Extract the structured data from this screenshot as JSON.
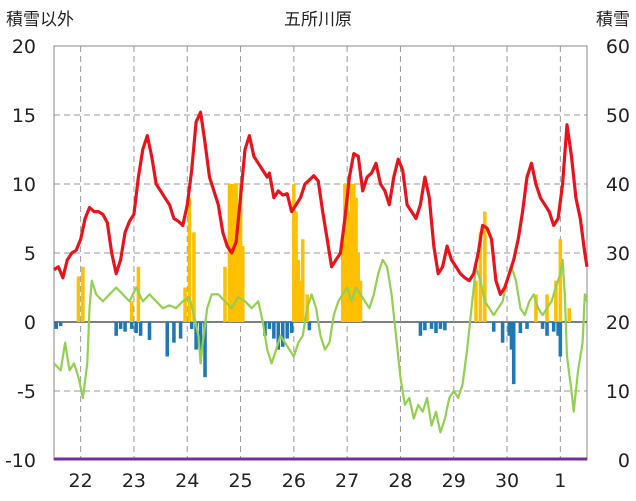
{
  "chart_data": {
    "type": "line",
    "title": "五所川原",
    "y_left_label": "積雪以外",
    "y_right_label": "積雪",
    "y_left_range": [
      -10,
      20
    ],
    "y_right_range": [
      0,
      60
    ],
    "y_left_ticks": [
      "20",
      "15",
      "10",
      "5",
      "0",
      "-5",
      "-10"
    ],
    "y_right_ticks": [
      "60",
      "50",
      "40",
      "30",
      "20",
      "10",
      "0"
    ],
    "day_labels": [
      "22",
      "23",
      "24",
      "25",
      "26",
      "27",
      "28",
      "29",
      "30",
      "1"
    ],
    "x_range_hours": [
      0,
      240
    ],
    "grid": true,
    "colors": {
      "temperature": "#e8141c",
      "dewpoint": "#92d050",
      "snow_plus": "#ffc000",
      "snow_minus": "#1f77b4",
      "snow_depth": "#7030a0"
    },
    "series": {
      "temperature": [
        [
          0,
          3.8
        ],
        [
          2,
          4.0
        ],
        [
          4,
          3.2
        ],
        [
          6,
          4.5
        ],
        [
          8,
          5.0
        ],
        [
          10,
          5.2
        ],
        [
          12,
          6.0
        ],
        [
          14,
          7.5
        ],
        [
          16,
          8.3
        ],
        [
          18,
          8.0
        ],
        [
          20,
          8.0
        ],
        [
          22,
          7.8
        ],
        [
          24,
          7.2
        ],
        [
          26,
          5.0
        ],
        [
          28,
          3.5
        ],
        [
          30,
          4.5
        ],
        [
          32,
          6.5
        ],
        [
          34,
          7.3
        ],
        [
          36,
          7.8
        ],
        [
          38,
          10.5
        ],
        [
          40,
          12.5
        ],
        [
          42,
          13.5
        ],
        [
          44,
          12.0
        ],
        [
          46,
          10.0
        ],
        [
          48,
          9.5
        ],
        [
          50,
          9.0
        ],
        [
          52,
          8.5
        ],
        [
          54,
          7.5
        ],
        [
          56,
          7.3
        ],
        [
          58,
          7.0
        ],
        [
          60,
          8.5
        ],
        [
          62,
          11.0
        ],
        [
          64,
          14.5
        ],
        [
          66,
          15.2
        ],
        [
          68,
          13.0
        ],
        [
          70,
          10.5
        ],
        [
          72,
          9.5
        ],
        [
          74,
          8.5
        ],
        [
          76,
          6.5
        ],
        [
          78,
          5.5
        ],
        [
          80,
          5.0
        ],
        [
          82,
          5.8
        ],
        [
          84,
          9.0
        ],
        [
          86,
          12.5
        ],
        [
          88,
          13.5
        ],
        [
          90,
          12.0
        ],
        [
          92,
          11.5
        ],
        [
          94,
          11.0
        ],
        [
          96,
          10.5
        ],
        [
          97,
          10.8
        ],
        [
          99,
          9.0
        ],
        [
          101,
          9.5
        ],
        [
          103,
          9.2
        ],
        [
          105,
          9.3
        ],
        [
          107,
          8.0
        ],
        [
          109,
          8.5
        ],
        [
          111,
          9.0
        ],
        [
          113,
          10.0
        ],
        [
          115,
          10.3
        ],
        [
          117,
          10.6
        ],
        [
          119,
          10.2
        ],
        [
          121,
          8.0
        ],
        [
          123,
          6.0
        ],
        [
          125,
          4.0
        ],
        [
          127,
          4.5
        ],
        [
          129,
          5.0
        ],
        [
          131,
          7.5
        ],
        [
          133,
          10.5
        ],
        [
          135,
          12.2
        ],
        [
          137,
          12.0
        ],
        [
          139,
          9.5
        ],
        [
          141,
          10.5
        ],
        [
          143,
          10.8
        ],
        [
          145,
          11.5
        ],
        [
          147,
          10.0
        ],
        [
          149,
          9.5
        ],
        [
          151,
          8.5
        ],
        [
          153,
          10.5
        ],
        [
          155,
          11.8
        ],
        [
          157,
          11.0
        ],
        [
          159,
          8.5
        ],
        [
          161,
          8.0
        ],
        [
          163,
          7.5
        ],
        [
          165,
          8.5
        ],
        [
          167,
          10.5
        ],
        [
          169,
          9.0
        ],
        [
          171,
          5.5
        ],
        [
          173,
          3.5
        ],
        [
          175,
          4.0
        ],
        [
          177,
          5.5
        ],
        [
          179,
          4.5
        ],
        [
          181,
          4.0
        ],
        [
          183,
          3.5
        ],
        [
          185,
          3.2
        ],
        [
          187,
          3.0
        ],
        [
          189,
          3.5
        ],
        [
          191,
          5.0
        ],
        [
          193,
          7.0
        ],
        [
          195,
          6.8
        ],
        [
          197,
          6.0
        ],
        [
          199,
          3.0
        ],
        [
          201,
          2.0
        ],
        [
          203,
          2.5
        ],
        [
          205,
          3.5
        ],
        [
          207,
          4.5
        ],
        [
          209,
          6.0
        ],
        [
          211,
          8.0
        ],
        [
          213,
          10.5
        ],
        [
          215,
          11.5
        ],
        [
          217,
          10.0
        ],
        [
          219,
          9.0
        ],
        [
          221,
          8.5
        ],
        [
          223,
          8.0
        ],
        [
          225,
          7.0
        ],
        [
          227,
          7.5
        ],
        [
          229,
          10.0
        ],
        [
          231,
          14.3
        ],
        [
          233,
          12.0
        ],
        [
          235,
          9.0
        ],
        [
          237,
          7.5
        ],
        [
          239,
          5.0
        ],
        [
          240,
          4.0
        ]
      ],
      "dewpoint": [
        [
          0,
          -3.0
        ],
        [
          3,
          -3.5
        ],
        [
          5,
          -1.5
        ],
        [
          7,
          -3.5
        ],
        [
          9,
          -3.0
        ],
        [
          11,
          -4.0
        ],
        [
          13,
          -5.5
        ],
        [
          15,
          -3.0
        ],
        [
          16,
          1.0
        ],
        [
          17,
          3.0
        ],
        [
          19,
          2.0
        ],
        [
          22,
          1.5
        ],
        [
          25,
          2.0
        ],
        [
          28,
          2.5
        ],
        [
          31,
          2.0
        ],
        [
          34,
          1.5
        ],
        [
          37,
          2.5
        ],
        [
          40,
          1.5
        ],
        [
          43,
          2.0
        ],
        [
          46,
          1.5
        ],
        [
          49,
          1.0
        ],
        [
          52,
          1.2
        ],
        [
          55,
          1.0
        ],
        [
          58,
          1.5
        ],
        [
          61,
          1.8
        ],
        [
          63,
          0.5
        ],
        [
          65,
          -1.0
        ],
        [
          66,
          -3.0
        ],
        [
          67,
          -1.5
        ],
        [
          69,
          1.0
        ],
        [
          71,
          2.0
        ],
        [
          74,
          2.0
        ],
        [
          77,
          1.5
        ],
        [
          80,
          1.0
        ],
        [
          83,
          1.8
        ],
        [
          86,
          1.5
        ],
        [
          89,
          1.0
        ],
        [
          92,
          1.5
        ],
        [
          94,
          0.0
        ],
        [
          96,
          -2.0
        ],
        [
          98,
          -3.0
        ],
        [
          100,
          -2.0
        ],
        [
          102,
          -1.0
        ],
        [
          104,
          -1.5
        ],
        [
          106,
          -2.0
        ],
        [
          108,
          -2.5
        ],
        [
          110,
          -1.5
        ],
        [
          112,
          -1.0
        ],
        [
          114,
          1.0
        ],
        [
          116,
          2.0
        ],
        [
          118,
          1.0
        ],
        [
          120,
          -1.0
        ],
        [
          122,
          -2.0
        ],
        [
          124,
          -1.5
        ],
        [
          126,
          0.5
        ],
        [
          128,
          1.5
        ],
        [
          130,
          2.0
        ],
        [
          132,
          2.5
        ],
        [
          134,
          1.5
        ],
        [
          136,
          2.5
        ],
        [
          138,
          2.0
        ],
        [
          140,
          1.5
        ],
        [
          142,
          1.0
        ],
        [
          144,
          2.0
        ],
        [
          146,
          3.5
        ],
        [
          148,
          4.5
        ],
        [
          150,
          4.0
        ],
        [
          152,
          2.0
        ],
        [
          154,
          -1.0
        ],
        [
          156,
          -4.0
        ],
        [
          158,
          -6.0
        ],
        [
          160,
          -5.5
        ],
        [
          162,
          -7.0
        ],
        [
          164,
          -6.0
        ],
        [
          166,
          -6.5
        ],
        [
          168,
          -5.5
        ],
        [
          170,
          -7.5
        ],
        [
          172,
          -6.5
        ],
        [
          174,
          -8.0
        ],
        [
          176,
          -7.0
        ],
        [
          178,
          -5.5
        ],
        [
          180,
          -5.0
        ],
        [
          182,
          -5.5
        ],
        [
          184,
          -4.5
        ],
        [
          186,
          -2.0
        ],
        [
          188,
          1.0
        ],
        [
          190,
          4.0
        ],
        [
          192,
          3.0
        ],
        [
          194,
          1.5
        ],
        [
          196,
          1.0
        ],
        [
          198,
          0.5
        ],
        [
          200,
          1.0
        ],
        [
          202,
          1.5
        ],
        [
          204,
          3.0
        ],
        [
          206,
          4.0
        ],
        [
          208,
          3.0
        ],
        [
          210,
          1.0
        ],
        [
          212,
          0.5
        ],
        [
          214,
          1.5
        ],
        [
          216,
          2.0
        ],
        [
          218,
          1.0
        ],
        [
          220,
          0.5
        ],
        [
          222,
          1.0
        ],
        [
          224,
          1.5
        ],
        [
          226,
          2.5
        ],
        [
          228,
          3.5
        ],
        [
          229,
          4.5
        ],
        [
          230,
          2.0
        ],
        [
          231,
          -2.5
        ],
        [
          233,
          -5.0
        ],
        [
          234,
          -6.5
        ],
        [
          236,
          -3.5
        ],
        [
          238,
          -1.5
        ],
        [
          239,
          2.0
        ],
        [
          240,
          1.5
        ]
      ],
      "snow_plus": [
        [
          11,
          3.3
        ],
        [
          13,
          4.0
        ],
        [
          35,
          1.5
        ],
        [
          38,
          4.0
        ],
        [
          59,
          2.5
        ],
        [
          61,
          9.0
        ],
        [
          63,
          6.5
        ],
        [
          77,
          4.0
        ],
        [
          79,
          10.0
        ],
        [
          80,
          10.0
        ],
        [
          81,
          10.0
        ],
        [
          82,
          10.0
        ],
        [
          83,
          7.0
        ],
        [
          84,
          10.0
        ],
        [
          85,
          5.5
        ],
        [
          108,
          10.0
        ],
        [
          109,
          8.0
        ],
        [
          110,
          4.5
        ],
        [
          111,
          3.0
        ],
        [
          112,
          6.0
        ],
        [
          114,
          2.0
        ],
        [
          130,
          6.0
        ],
        [
          131,
          10.0
        ],
        [
          132,
          10.0
        ],
        [
          133,
          8.0
        ],
        [
          134,
          10.0
        ],
        [
          135,
          10.0
        ],
        [
          136,
          9.0
        ],
        [
          137,
          5.0
        ],
        [
          138,
          3.0
        ],
        [
          190,
          3.0
        ],
        [
          192,
          6.5
        ],
        [
          194,
          8.0
        ],
        [
          217,
          2.0
        ],
        [
          222,
          2.0
        ],
        [
          226,
          3.0
        ],
        [
          228,
          6.0
        ],
        [
          232,
          1.0
        ]
      ],
      "snow_minus": [
        [
          1,
          -0.5
        ],
        [
          3,
          -0.3
        ],
        [
          28,
          -1.0
        ],
        [
          30,
          -0.5
        ],
        [
          32,
          -0.7
        ],
        [
          35,
          -0.5
        ],
        [
          37,
          -0.8
        ],
        [
          39,
          -1.0
        ],
        [
          43,
          -1.3
        ],
        [
          51,
          -2.5
        ],
        [
          54,
          -1.5
        ],
        [
          57,
          -1.2
        ],
        [
          62,
          -0.5
        ],
        [
          64,
          -2.0
        ],
        [
          66,
          -2.2
        ],
        [
          68,
          -4.0
        ],
        [
          95,
          -1.0
        ],
        [
          97,
          -0.5
        ],
        [
          99,
          -1.2
        ],
        [
          101,
          -2.0
        ],
        [
          103,
          -1.8
        ],
        [
          105,
          -1.2
        ],
        [
          107,
          -0.8
        ],
        [
          115,
          -0.6
        ],
        [
          165,
          -1.0
        ],
        [
          167,
          -0.6
        ],
        [
          170,
          -0.5
        ],
        [
          172,
          -0.8
        ],
        [
          174,
          -0.5
        ],
        [
          176,
          -0.6
        ],
        [
          198,
          -0.7
        ],
        [
          202,
          -1.5
        ],
        [
          205,
          -1.0
        ],
        [
          206,
          -2.0
        ],
        [
          207,
          -4.5
        ],
        [
          210,
          -0.8
        ],
        [
          213,
          -0.5
        ],
        [
          220,
          -0.5
        ],
        [
          222,
          -1.0
        ],
        [
          225,
          -0.7
        ],
        [
          227,
          -1.0
        ],
        [
          228,
          -2.5
        ]
      ]
    }
  }
}
